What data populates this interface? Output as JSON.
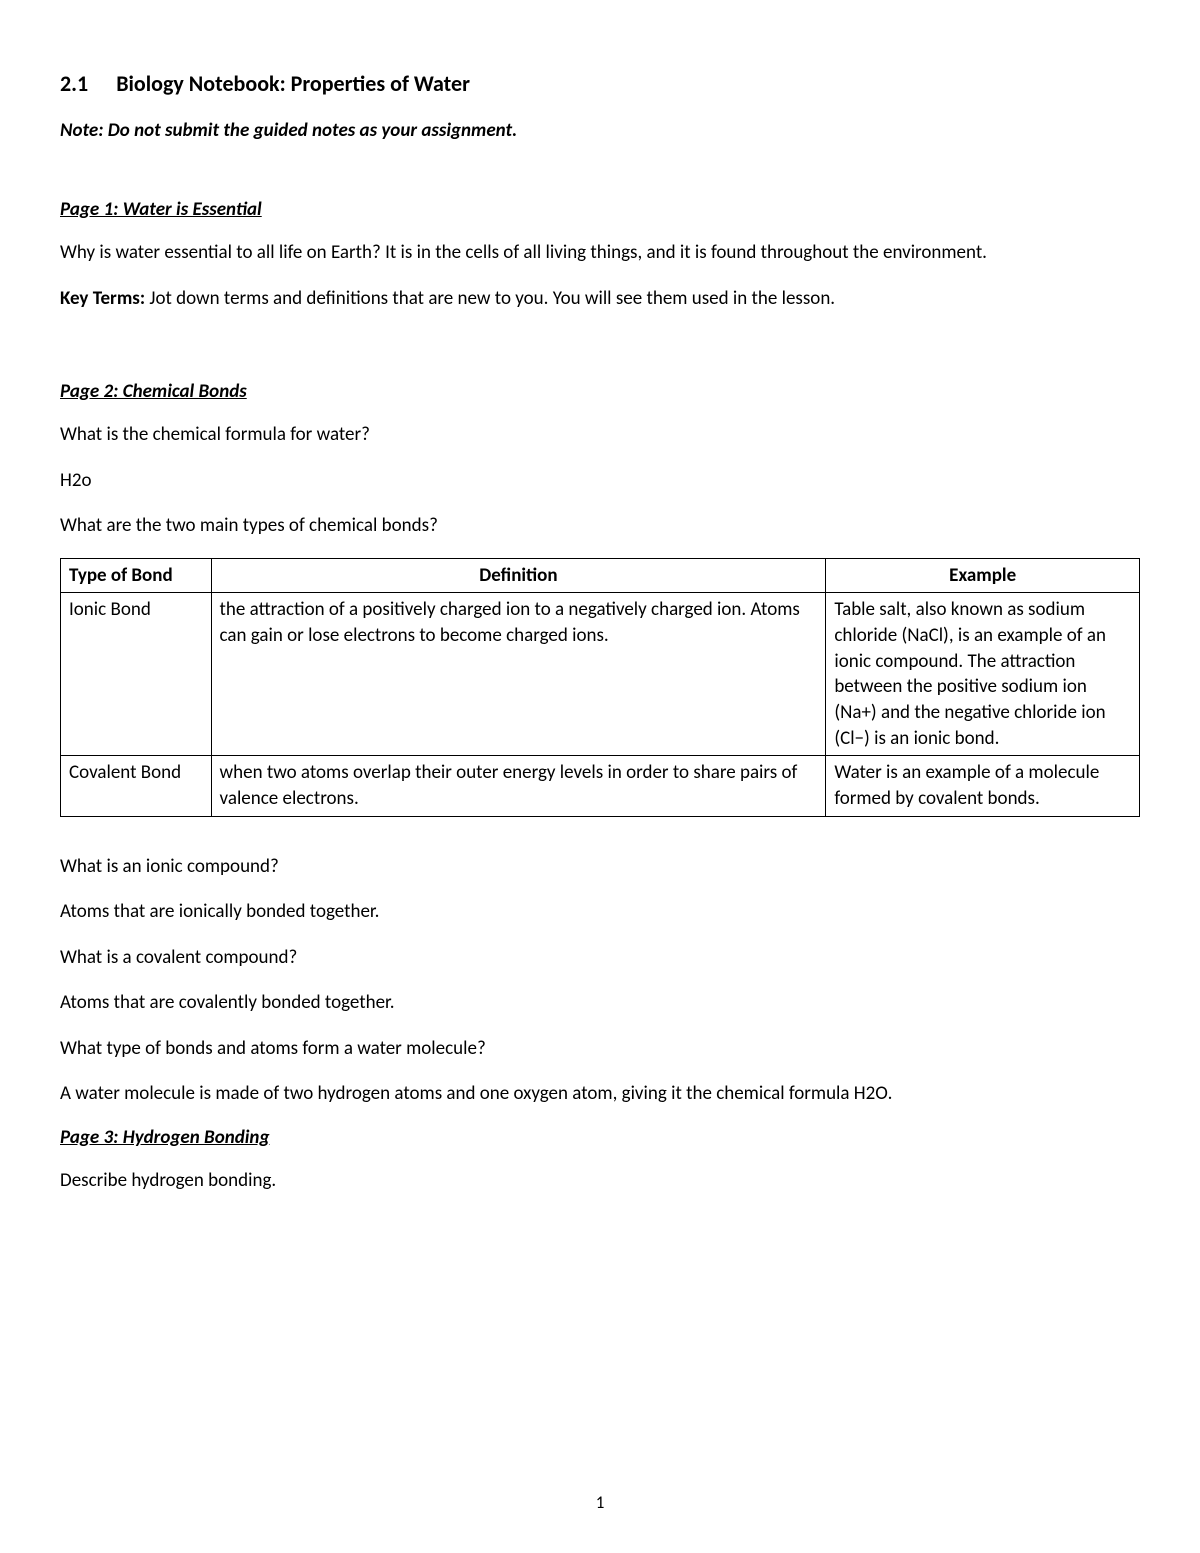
{
  "title": {
    "number": "2.1",
    "text": "Biology Notebook: Properties of Water"
  },
  "note": "Note: Do not submit the guided notes as your assignment.",
  "sections": {
    "page1": {
      "heading": "Page 1: Water is Essential",
      "q1": "Why is water essential to all life on Earth? It is in the cells of all living things, and it is found throughout the environment.",
      "key_terms_label": "Key Terms:",
      "key_terms_text": " Jot down terms and definitions that are new to you. You will see them used in the lesson."
    },
    "page2": {
      "heading": "Page 2: Chemical Bonds",
      "q1": "What is the chemical formula for water?",
      "a1": "H2o",
      "q2": "What are the two main types of chemical bonds?",
      "table": {
        "headers": {
          "type": "Type of Bond",
          "definition": "Definition",
          "example": "Example"
        },
        "rows": [
          {
            "type": "Ionic Bond",
            "definition": "the attraction of a positively charged ion to a negatively charged ion. Atoms can gain or lose electrons to become charged ions.",
            "example": "Table salt, also known as sodium chloride (NaCl), is an example of an ionic compound. The attraction between the positive sodium ion (Na+) and the negative chloride ion (Cl−) is an ionic bond."
          },
          {
            "type": "Covalent Bond",
            "definition": "when two atoms overlap their outer energy levels in order to share pairs of valence electrons.",
            "example": "Water is an example of a molecule formed by covalent bonds."
          }
        ]
      },
      "q3": "What is an ionic compound?",
      "a3": "Atoms that are ionically bonded together.",
      "q4": "What is a covalent compound?",
      "a4": "Atoms that are covalently bonded together.",
      "q5": "What type of bonds and atoms form a water molecule?",
      "a5": "A water molecule is made of two hydrogen atoms and one oxygen atom, giving it the chemical formula H2O."
    },
    "page3": {
      "heading": "Page 3: Hydrogen Bonding",
      "q1": "Describe hydrogen bonding."
    }
  },
  "page_number": "1"
}
